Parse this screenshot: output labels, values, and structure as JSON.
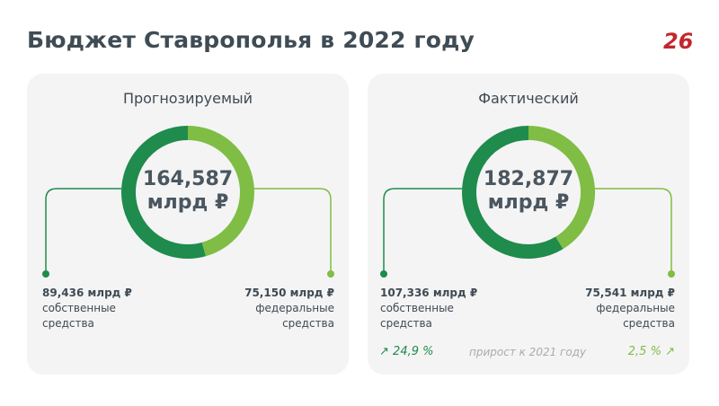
{
  "header": {
    "title": "Бюджет Ставрополья в 2022 году"
  },
  "logo": {
    "icon": "26-logo",
    "color": "#c1272d"
  },
  "colors": {
    "own": "#1f8b4c",
    "federal": "#7fbd45",
    "panel": "#f4f4f4"
  },
  "chart_data": [
    {
      "type": "pie",
      "title": "Прогнозируемый",
      "total_value": "164,587",
      "total_unit": "млрд ₽",
      "slices": [
        {
          "value": 89.436,
          "label_value": "89,436 млрд ₽",
          "label_line1": "собственные",
          "label_line2": "средства"
        },
        {
          "value": 75.15,
          "label_value": "75,150 млрд ₽",
          "label_line1": "федеральные",
          "label_line2": "средства"
        }
      ]
    },
    {
      "type": "pie",
      "title": "Фактический",
      "total_value": "182,877",
      "total_unit": "млрд ₽",
      "slices": [
        {
          "value": 107.336,
          "label_value": "107,336 млрд ₽",
          "label_line1": "собственные",
          "label_line2": "средства"
        },
        {
          "value": 75.541,
          "label_value": "75,541 млрд ₽",
          "label_line1": "федеральные",
          "label_line2": "средства"
        }
      ],
      "growth": {
        "own": "24,9 %",
        "label": "прирост к 2021 году",
        "federal": "2,5 %"
      }
    }
  ]
}
